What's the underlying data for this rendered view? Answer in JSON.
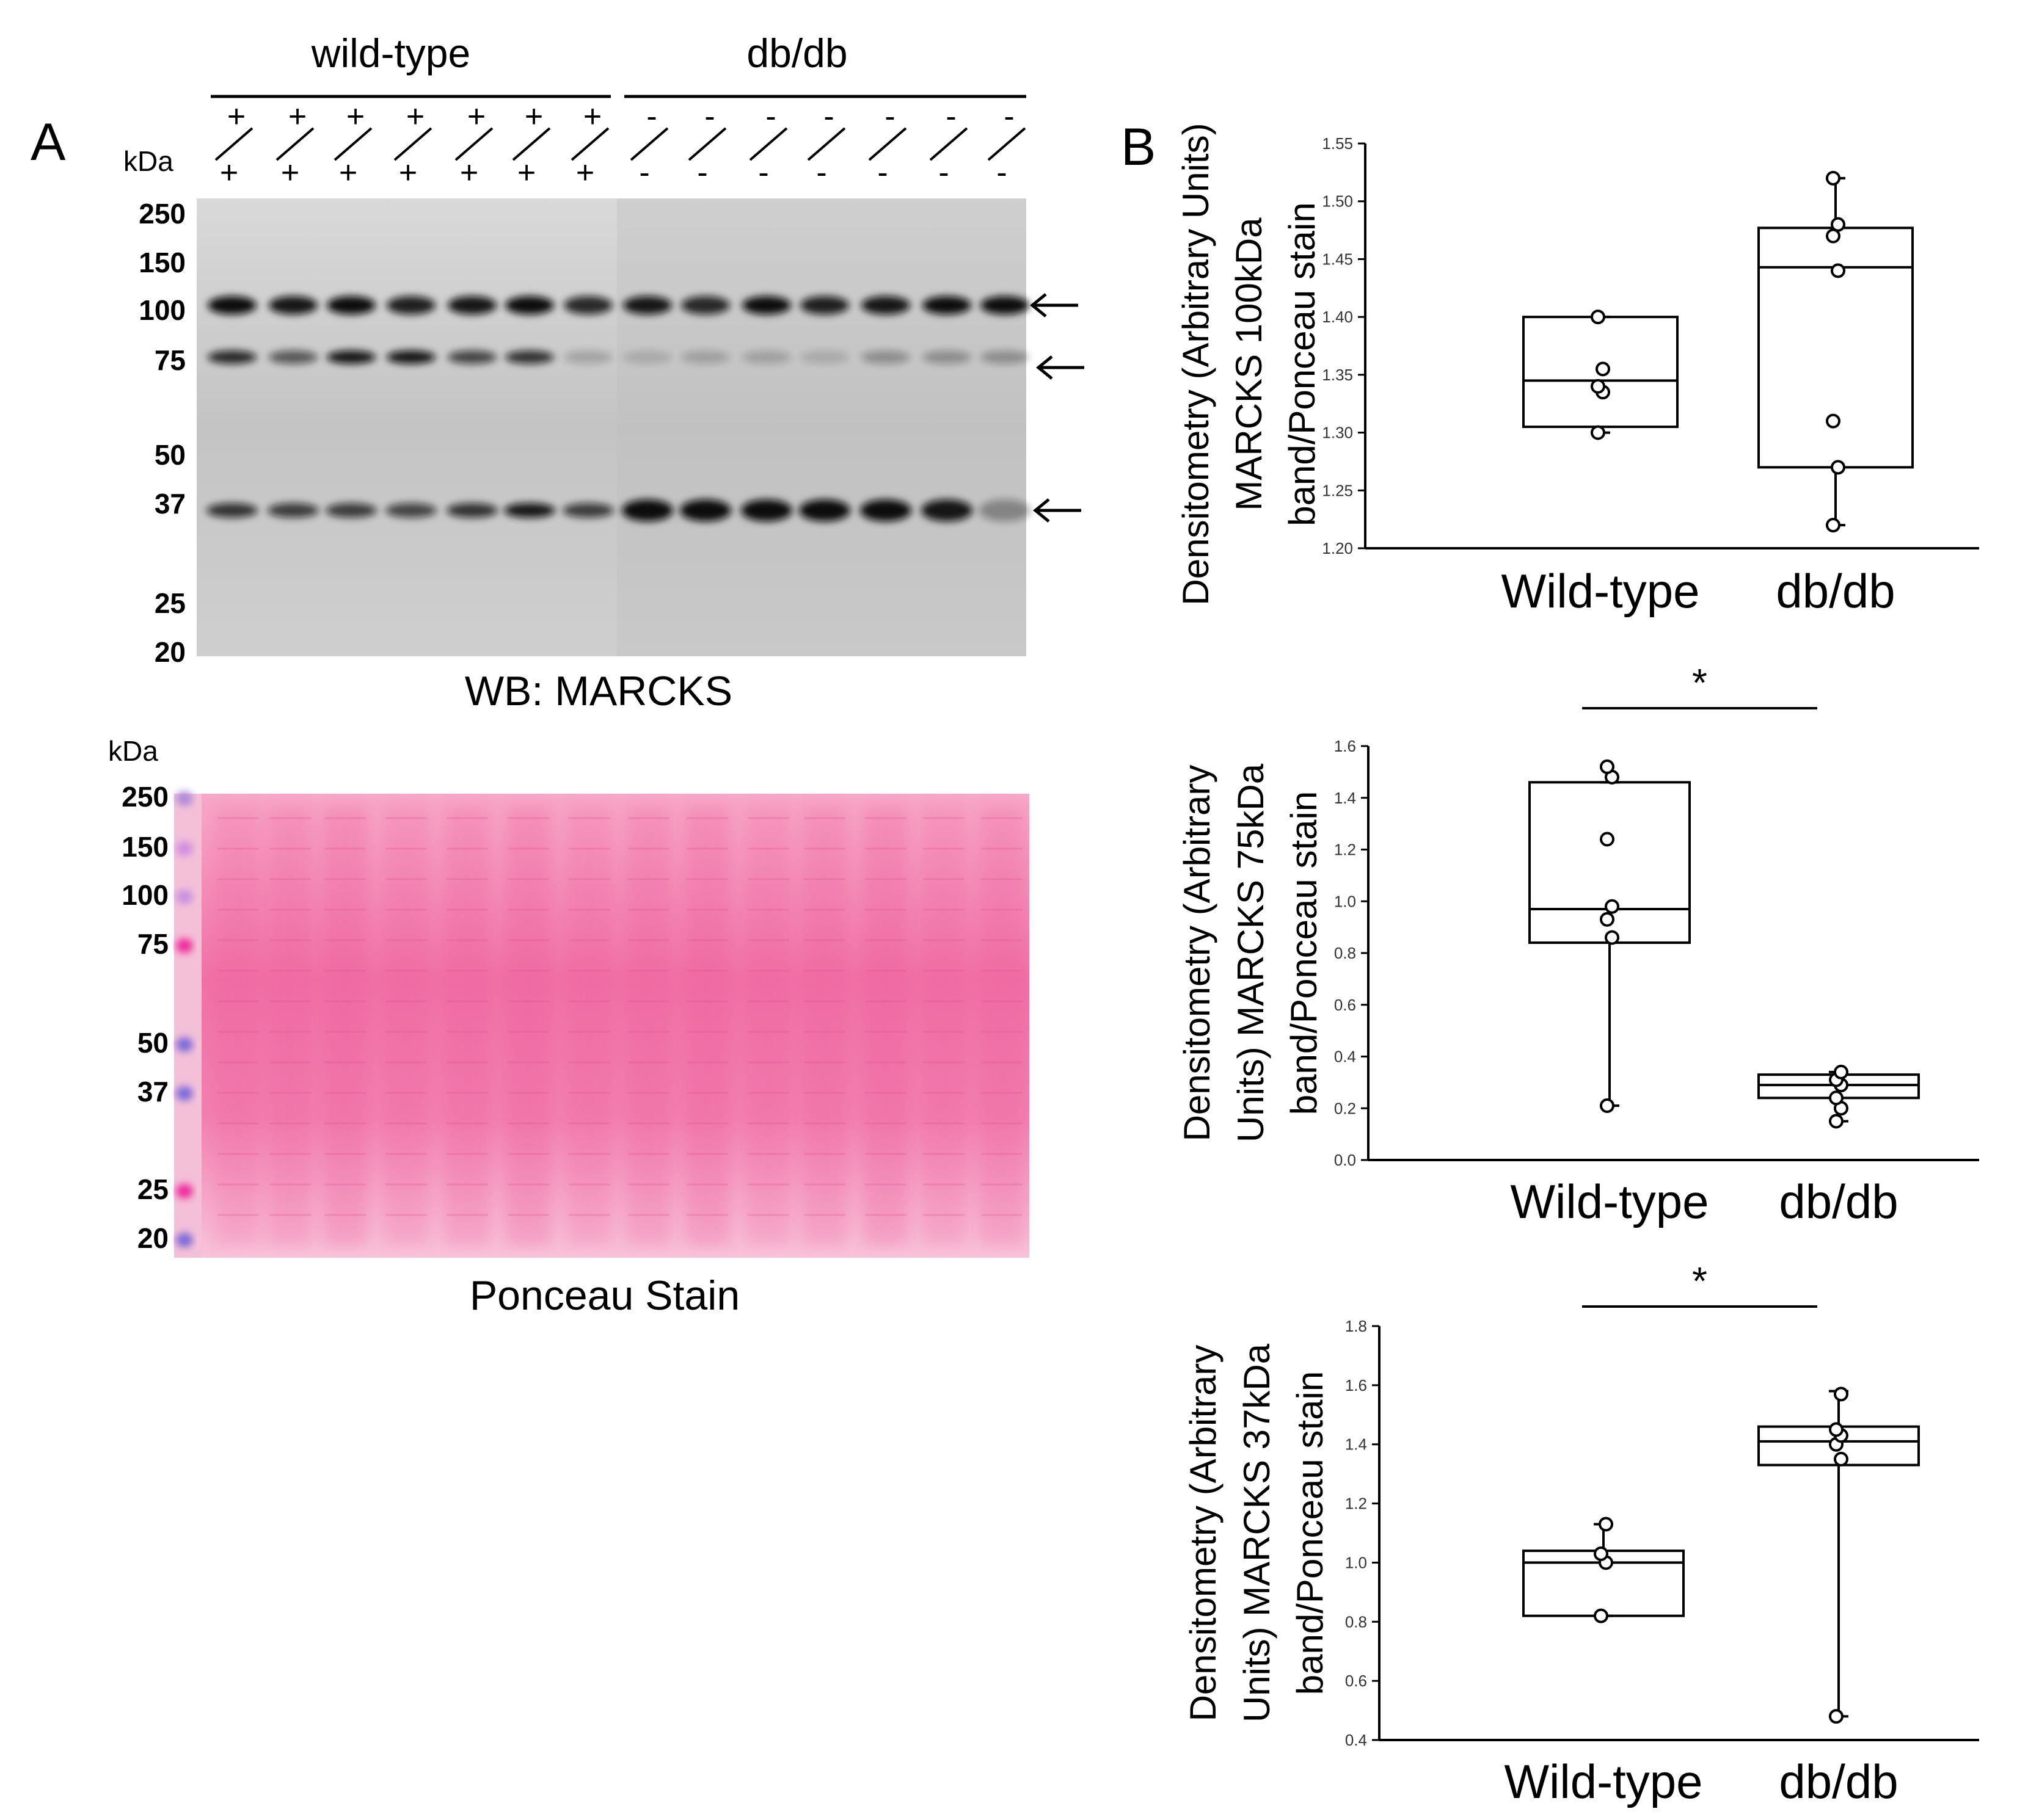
{
  "panel_a": {
    "label": "A",
    "group_labels": [
      "wild-type",
      "db/db"
    ],
    "genotype_wt": [
      "+/+",
      "+/+",
      "+/+",
      "+/+",
      "+/+",
      "+/+",
      "+/+"
    ],
    "genotype_db": [
      "-/-",
      "-/-",
      "-/-",
      "-/-",
      "-/-",
      "-/-",
      "-/-"
    ],
    "kda_label": "kDa",
    "wb_markers": [
      "250",
      "150",
      "100",
      "75",
      "50",
      "37",
      "25",
      "20"
    ],
    "wb_caption": "WB:  MARCKS",
    "ponceau_kda_label": "kDa",
    "ponceau_markers": [
      "250",
      "150",
      "100",
      "75",
      "50",
      "37",
      "25",
      "20"
    ],
    "ponceau_caption": "Ponceau Stain",
    "arrow_icon": "left-arrow-icon",
    "colors": {
      "blot_bg": "#c8c8c8",
      "band": "#111111",
      "ponceau": "#f06aa0"
    }
  },
  "panel_b": {
    "label": "B"
  },
  "chart_data": [
    {
      "type": "box",
      "ylabel": "Densitometry (Arbitrary Units) MARCKS 100kDa band/Ponceau stain",
      "ylabel_lines": [
        "Densitometry (Arbitrary Units)",
        "MARCKS 100kDa",
        "band/Ponceau stain"
      ],
      "categories": [
        "Wild-type",
        "db/db"
      ],
      "ylim": [
        1.2,
        1.55
      ],
      "yticks": [
        "1.20",
        "1.25",
        "1.30",
        "1.35",
        "1.40",
        "1.45",
        "1.50",
        "1.55"
      ],
      "boxes": [
        {
          "name": "Wild-type",
          "whisker_low": 1.3,
          "q1": 1.305,
          "median": 1.345,
          "q3": 1.4,
          "whisker_high": 1.4,
          "points": [
            1.3,
            1.335,
            1.34,
            1.355,
            1.4
          ]
        },
        {
          "name": "db/db",
          "whisker_low": 1.22,
          "q1": 1.27,
          "median": 1.443,
          "q3": 1.477,
          "whisker_high": 1.52,
          "points": [
            1.22,
            1.27,
            1.31,
            1.44,
            1.47,
            1.48,
            1.52
          ]
        }
      ],
      "significance": ""
    },
    {
      "type": "box",
      "ylabel": "Densitometry (Arbitrary Units) MARCKS 75kDa band/Ponceau stain",
      "ylabel_lines": [
        "Densitometry (Arbitrary",
        "Units) MARCKS 75kDa",
        "band/Ponceau stain"
      ],
      "categories": [
        "Wild-type",
        "db/db"
      ],
      "ylim": [
        0.0,
        1.6
      ],
      "yticks": [
        "0.0",
        "0.2",
        "0.4",
        "0.6",
        "0.8",
        "1.0",
        "1.2",
        "1.4",
        "1.6"
      ],
      "boxes": [
        {
          "name": "Wild-type",
          "whisker_low": 0.21,
          "q1": 0.84,
          "median": 0.97,
          "q3": 1.46,
          "whisker_high": 1.46,
          "points": [
            0.21,
            0.86,
            0.93,
            0.98,
            1.24,
            1.48,
            1.52
          ]
        },
        {
          "name": "db/db",
          "whisker_low": 0.15,
          "q1": 0.24,
          "median": 0.29,
          "q3": 0.33,
          "whisker_high": 0.34,
          "points": [
            0.15,
            0.2,
            0.24,
            0.29,
            0.31,
            0.34
          ]
        }
      ],
      "significance": "*"
    },
    {
      "type": "box",
      "ylabel": "Densitometry (Arbitrary Units) MARCKS 37kDa band/Ponceau stain",
      "ylabel_lines": [
        "Densitometry (Arbitrary",
        "Units) MARCKS 37kDa",
        "band/Ponceau stain"
      ],
      "categories": [
        "Wild-type",
        "db/db"
      ],
      "ylim": [
        0.4,
        1.8
      ],
      "yticks": [
        "0.4",
        "0.6",
        "0.8",
        "1.0",
        "1.2",
        "1.4",
        "1.6",
        "1.8"
      ],
      "boxes": [
        {
          "name": "Wild-type",
          "whisker_low": 0.82,
          "q1": 0.82,
          "median": 1.0,
          "q3": 1.04,
          "whisker_high": 1.13,
          "points": [
            0.82,
            1.0,
            1.03,
            1.13
          ]
        },
        {
          "name": "db/db",
          "whisker_low": 0.48,
          "q1": 1.33,
          "median": 1.41,
          "q3": 1.46,
          "whisker_high": 1.58,
          "points": [
            0.48,
            1.35,
            1.4,
            1.43,
            1.45,
            1.57
          ]
        }
      ],
      "significance": "*"
    }
  ]
}
